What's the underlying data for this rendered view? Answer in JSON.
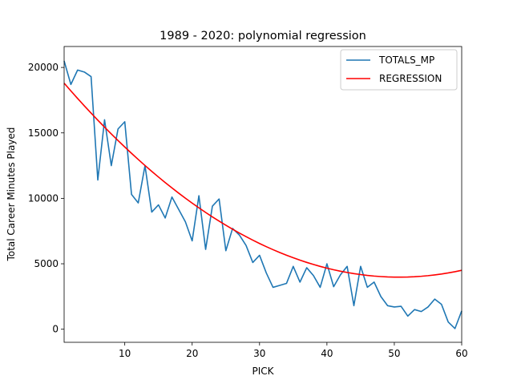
{
  "chart_data": {
    "type": "line",
    "title": "1989 - 2020: polynomial regression",
    "xlabel": "PICK",
    "ylabel": "Total Career Minutes Played",
    "xlim": [
      1,
      60
    ],
    "ylim": [
      -1000,
      21600
    ],
    "x_ticks": [
      10,
      20,
      30,
      40,
      50,
      60
    ],
    "y_ticks": [
      0,
      5000,
      10000,
      15000,
      20000
    ],
    "grid": false,
    "legend_position": "top-right",
    "series": [
      {
        "name": "TOTALS_MP",
        "color": "#1f77b4",
        "x": [
          1,
          2,
          3,
          4,
          5,
          6,
          7,
          8,
          9,
          10,
          11,
          12,
          13,
          14,
          15,
          16,
          17,
          18,
          19,
          20,
          21,
          22,
          23,
          24,
          25,
          26,
          27,
          28,
          29,
          30,
          31,
          32,
          33,
          34,
          35,
          36,
          37,
          38,
          39,
          40,
          41,
          42,
          43,
          44,
          45,
          46,
          47,
          48,
          49,
          50,
          51,
          52,
          53,
          54,
          55,
          56,
          57,
          58,
          59,
          60
        ],
        "y": [
          20500,
          18700,
          19800,
          19650,
          19300,
          11400,
          16000,
          12500,
          15300,
          15850,
          10300,
          9650,
          12500,
          8950,
          9500,
          8500,
          10100,
          9150,
          8200,
          6750,
          10200,
          6100,
          9400,
          9950,
          6000,
          7700,
          7200,
          6400,
          5100,
          5650,
          4300,
          3200,
          3350,
          3500,
          4800,
          3600,
          4700,
          4100,
          3200,
          5000,
          3250,
          4150,
          4800,
          1800,
          4800,
          3200,
          3600,
          2500,
          1800,
          1700,
          1750,
          1000,
          1500,
          1350,
          1700,
          2300,
          1900,
          550,
          50,
          1400
        ]
      },
      {
        "name": "REGRESSION",
        "color": "#ff0000",
        "x": [
          1,
          2,
          3,
          4,
          5,
          6,
          7,
          8,
          9,
          10,
          11,
          12,
          13,
          14,
          15,
          16,
          17,
          18,
          19,
          20,
          21,
          22,
          23,
          24,
          25,
          26,
          27,
          28,
          29,
          30,
          31,
          32,
          33,
          34,
          35,
          36,
          37,
          38,
          39,
          40,
          41,
          42,
          43,
          44,
          45,
          46,
          47,
          48,
          49,
          50,
          51,
          52,
          53,
          54,
          55,
          56,
          57,
          58,
          59,
          60
        ],
        "y": [
          18800,
          18210,
          17632,
          17066,
          16512,
          15969,
          15439,
          14921,
          14414,
          13920,
          13438,
          12967,
          12509,
          12062,
          11628,
          11205,
          10795,
          10396,
          10010,
          9635,
          9273,
          8922,
          8584,
          8257,
          7943,
          7640,
          7350,
          7071,
          6805,
          6550,
          6308,
          6077,
          5859,
          5652,
          5458,
          5275,
          5105,
          4947,
          4800,
          4666,
          4543,
          4433,
          4335,
          4248,
          4174,
          4111,
          4061,
          4023,
          3996,
          3982,
          3980,
          3990,
          4011,
          4045,
          4091,
          4149,
          4218,
          4300,
          4394,
          4500
        ]
      }
    ]
  }
}
